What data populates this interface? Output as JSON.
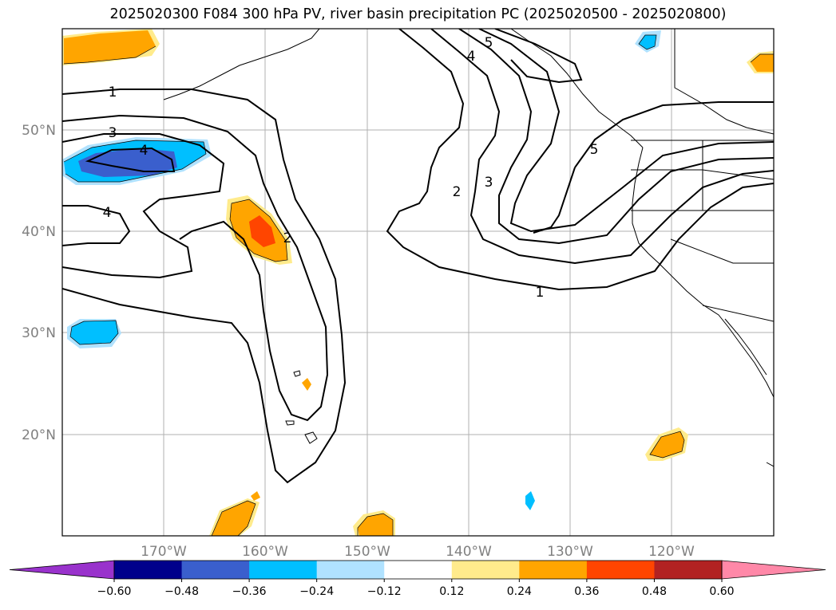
{
  "title": "2025020300 F084 300 hPa PV, river basin precipitation PC (2025020500 - 2025020800)",
  "map": {
    "lon_labels": [
      "170°W",
      "160°W",
      "150°W",
      "140°W",
      "130°W",
      "120°W"
    ],
    "lat_labels": [
      "50°N",
      "40°N",
      "30°N",
      "20°N"
    ],
    "contour_labels": [
      "1",
      "3",
      "4",
      "4",
      "2",
      "2",
      "3",
      "4",
      "5",
      "5",
      "1"
    ]
  },
  "colorbar": {
    "tick_labels": [
      "−0.60",
      "−0.48",
      "−0.36",
      "−0.24",
      "−0.12",
      "0.12",
      "0.24",
      "0.36",
      "0.48",
      "0.60"
    ],
    "colors": {
      "under": "#9932cc",
      "bins": [
        "#00008b",
        "#3a5fcd",
        "#00bfff",
        "#b0e2ff",
        "#ffffff",
        "#ffeb8c",
        "#ffa500",
        "#ff4500",
        "#b22222"
      ],
      "over": "#ff88a8"
    }
  }
}
